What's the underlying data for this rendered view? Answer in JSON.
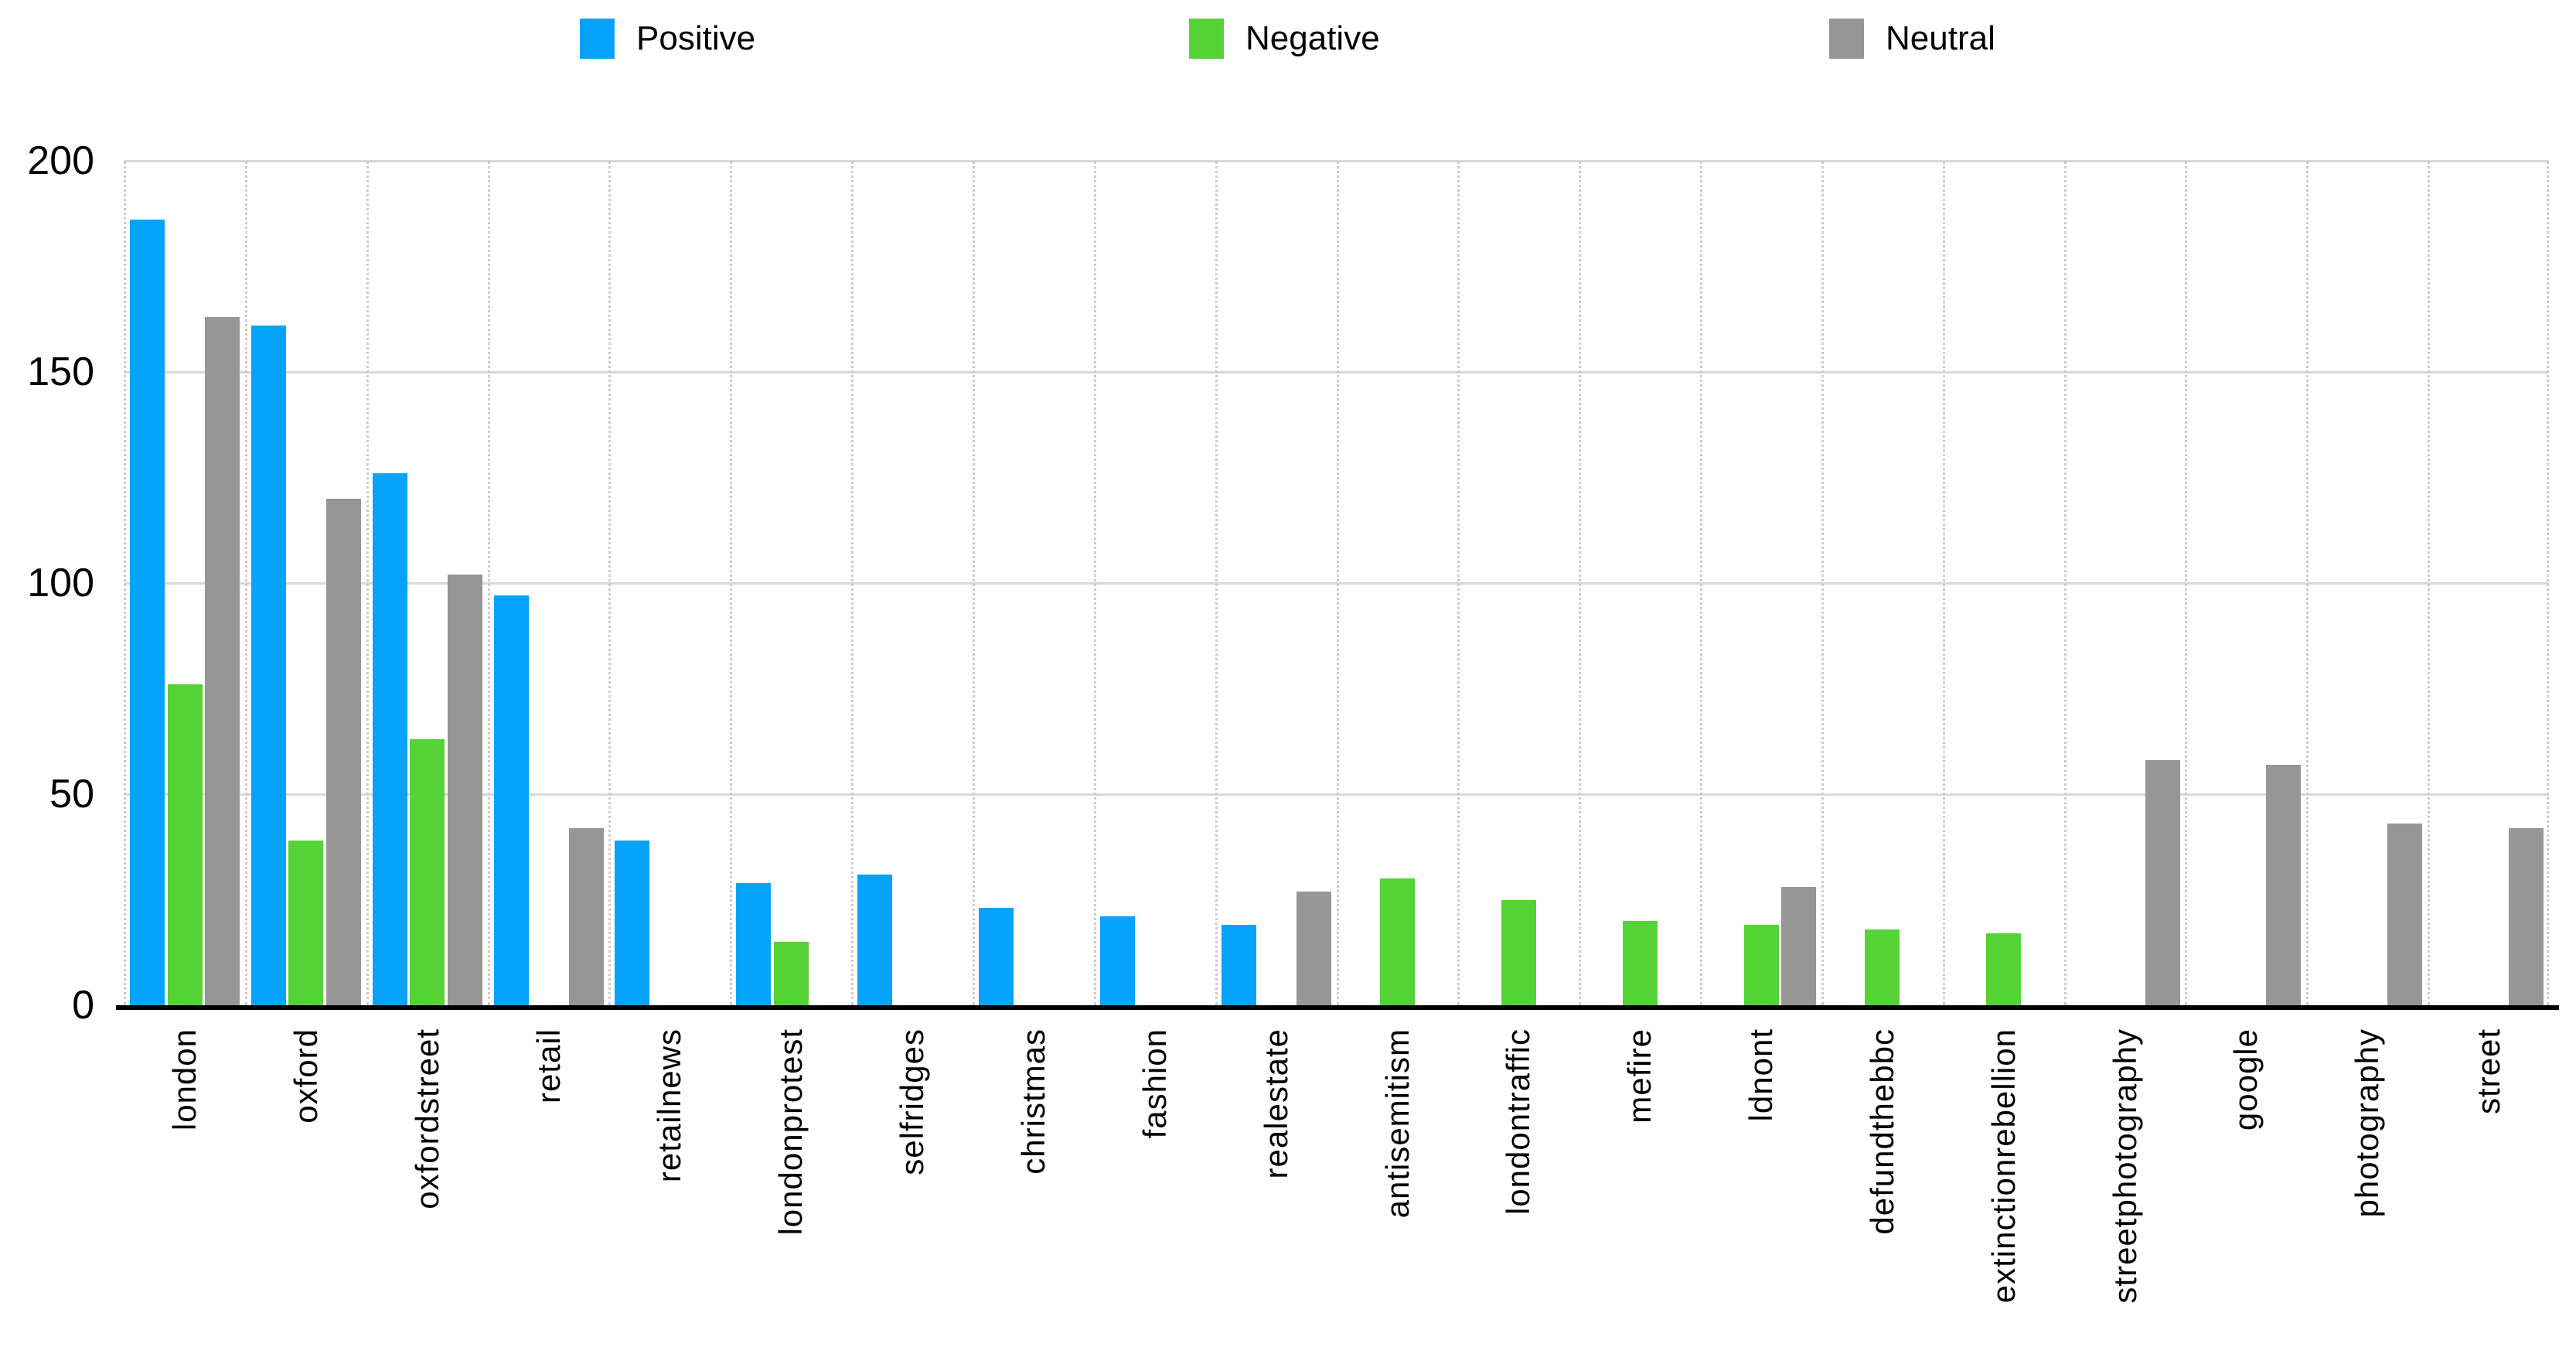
{
  "chart_data": {
    "type": "bar",
    "title": "",
    "xlabel": "",
    "ylabel": "",
    "ylim": [
      0,
      200
    ],
    "yticks": [
      0,
      50,
      100,
      150,
      200
    ],
    "grid": "horizontal solid lines at yticks, vertical dotted lines at category boundaries",
    "legend_position": "top",
    "categories": [
      "london",
      "oxford",
      "oxfordstreet",
      "retail",
      "retailnews",
      "londonprotest",
      "selfridges",
      "christmas",
      "fashion",
      "realestate",
      "antisemitism",
      "londontraffic",
      "mefire",
      "ldnont",
      "defundthebbc",
      "extinctionrebellion",
      "streetphotography",
      "google",
      "photography",
      "street"
    ],
    "series": [
      {
        "name": "Positive",
        "color": "#07a2f9",
        "values": [
          186,
          161,
          126,
          97,
          39,
          29,
          31,
          23,
          21,
          19,
          0,
          0,
          0,
          0,
          0,
          0,
          0,
          0,
          0,
          0
        ]
      },
      {
        "name": "Negative",
        "color": "#55d235",
        "values": [
          76,
          39,
          63,
          0,
          0,
          15,
          0,
          0,
          0,
          0,
          30,
          25,
          20,
          19,
          18,
          17,
          0,
          0,
          0,
          0
        ]
      },
      {
        "name": "Neutral",
        "color": "#969696",
        "values": [
          163,
          120,
          102,
          42,
          0,
          0,
          0,
          0,
          0,
          27,
          0,
          0,
          0,
          28,
          0,
          0,
          58,
          57,
          43,
          42
        ]
      }
    ]
  },
  "legend_colors": {
    "positive": "#07a2f9",
    "negative": "#55d235",
    "neutral": "#969696"
  },
  "axis_colors": {
    "axis_line": "#000000",
    "hgrid": "#d8d8d8",
    "vgrid": "#cccccc",
    "text": "#000000"
  }
}
